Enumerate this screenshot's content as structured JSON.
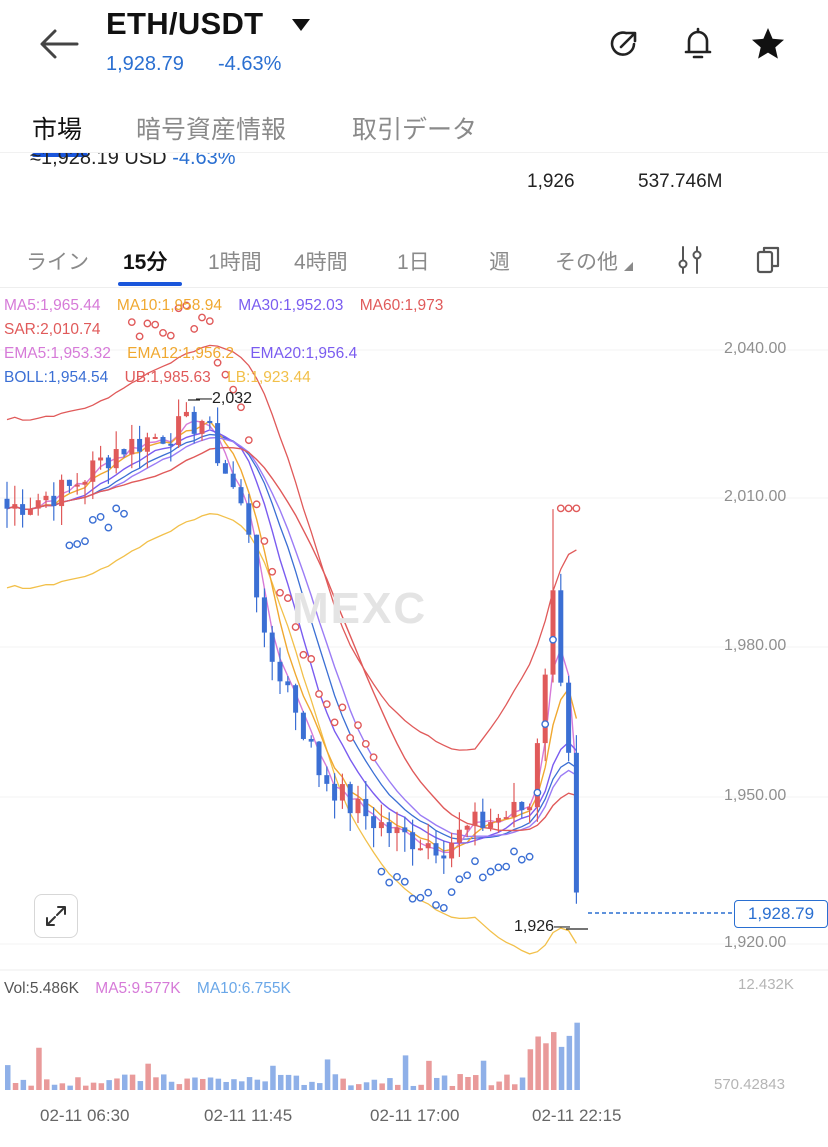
{
  "header": {
    "pair": "ETH/USDT",
    "price": "1,928.79",
    "change": "-4.63%"
  },
  "tabs": [
    "市場",
    "暗号資産情報",
    "取引データ"
  ],
  "ticker": {
    "usd_text": "≈1,928.19 USD",
    "usd_change": "-4.63%",
    "value1": "1,926",
    "value2": "537.746M"
  },
  "intervals": [
    "ライン",
    "15分",
    "1時間",
    "4時間",
    "1日",
    "週",
    "その他"
  ],
  "indicators": {
    "ma5": "MA5:1,965.44",
    "ma10": "MA10:1,958.94",
    "ma30": "MA30:1,952.03",
    "ma60": "MA60:1,973",
    "sar": "SAR:2,010.74",
    "ema5": "EMA5:1,953.32",
    "ema12": "EMA12:1,956.2",
    "ema20": "EMA20:1,956.4",
    "boll": "BOLL:1,954.54",
    "ub": "UB:1,985.63",
    "lb": "LB:1,923.44"
  },
  "price_axis": [
    "2,040.00",
    "2,010.00",
    "1,980.00",
    "1,950.00",
    "1,920.00"
  ],
  "last_price_tag": "1,928.79",
  "high_marker": "2,032",
  "low_marker": "1,926",
  "watermark": "MEXC",
  "volume": {
    "vol": "Vol:5.486K",
    "ma5": "MA5:9.577K",
    "ma10": "MA10:6.755K",
    "axis_max": "12.432K",
    "axis_min": "570.42843"
  },
  "time_axis": [
    "02-11 06:30",
    "02-11 11:45",
    "02-11 17:00",
    "02-11 22:15"
  ],
  "colors": {
    "up": "#e05a5a",
    "down": "#3b6fd4",
    "ma5": "#d67ad8",
    "ma10": "#f0a830",
    "ma30": "#7a5cf0",
    "ma60": "#e05a5a",
    "boll": "#3b6fd4",
    "ub": "#e05a5a",
    "lb": "#f2c04a"
  },
  "icons": {
    "back": "arrow-left-icon",
    "share": "share-arrow-icon",
    "alert": "bell-icon",
    "favorite": "star-icon",
    "settings": "sliders-icon",
    "layout": "layout-icon",
    "expand": "expand-icon"
  }
}
